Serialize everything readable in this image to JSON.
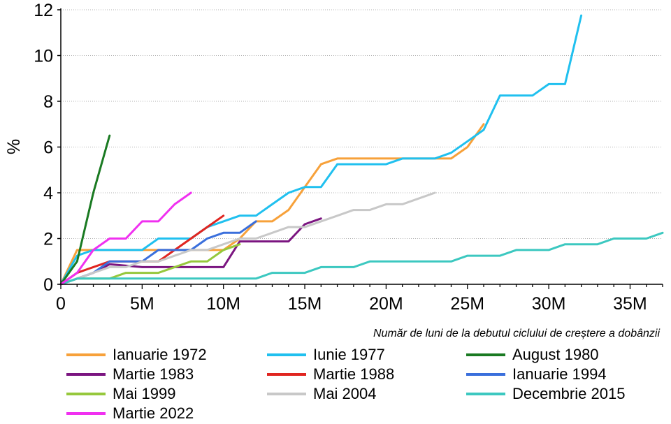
{
  "chart_data": {
    "type": "line",
    "title": "",
    "xlabel": "Număr de luni de la debutul ciclului de creștere a dobânzii",
    "ylabel": "%",
    "xlim": [
      0,
      37
    ],
    "ylim": [
      0,
      12
    ],
    "x_ticks": [
      {
        "value": 0,
        "label": "0"
      },
      {
        "value": 5,
        "label": "5M"
      },
      {
        "value": 10,
        "label": "10M"
      },
      {
        "value": 15,
        "label": "15M"
      },
      {
        "value": 20,
        "label": "20M"
      },
      {
        "value": 25,
        "label": "25M"
      },
      {
        "value": 30,
        "label": "30M"
      },
      {
        "value": 35,
        "label": "35M"
      }
    ],
    "y_ticks": [
      {
        "value": 0,
        "label": "0"
      },
      {
        "value": 2,
        "label": "2"
      },
      {
        "value": 4,
        "label": "4"
      },
      {
        "value": 6,
        "label": "6"
      },
      {
        "value": 8,
        "label": "8"
      },
      {
        "value": 10,
        "label": "10"
      },
      {
        "value": 12,
        "label": "12"
      }
    ],
    "grid": "horizontal-dotted",
    "legend_position": "bottom",
    "series": [
      {
        "name": "Ianuarie 1972",
        "color": "#f7a13a",
        "x": [
          0,
          1,
          5,
          9,
          10,
          11,
          12,
          13,
          14,
          15,
          16,
          17,
          18,
          19,
          20,
          21,
          22,
          23,
          24,
          25,
          26
        ],
        "y": [
          0,
          1.5,
          1.5,
          1.5,
          1.5,
          2,
          2.75,
          2.75,
          3.25,
          4.25,
          5.25,
          5.5,
          5.5,
          5.5,
          5.5,
          5.5,
          5.5,
          5.5,
          5.5,
          6,
          7
        ]
      },
      {
        "name": "Iunie 1977",
        "color": "#20c0ef",
        "x": [
          0,
          1,
          2,
          5,
          6,
          8,
          9,
          10,
          11,
          12,
          13,
          14,
          15,
          16,
          17,
          18,
          19,
          20,
          21,
          22,
          23,
          24,
          25,
          26,
          27,
          28,
          29,
          30,
          31,
          32
        ],
        "y": [
          0,
          1.25,
          1.5,
          1.5,
          2,
          2,
          2.5,
          2.75,
          3,
          3,
          3.5,
          4,
          4.25,
          4.25,
          5.25,
          5.25,
          5.25,
          5.25,
          5.5,
          5.5,
          5.5,
          5.75,
          6.25,
          6.75,
          8.25,
          8.25,
          8.25,
          8.75,
          8.75,
          11.75
        ]
      },
      {
        "name": "August 1980",
        "color": "#1a7a22",
        "x": [
          0,
          1,
          2,
          3
        ],
        "y": [
          0,
          1,
          4,
          6.5
        ]
      },
      {
        "name": "Martie 1983",
        "color": "#7b1580",
        "x": [
          0,
          1,
          2,
          3,
          5,
          9,
          10,
          11,
          14,
          15,
          16
        ],
        "y": [
          0,
          0.25,
          0.5,
          0.875,
          0.75,
          0.75,
          0.75,
          1.875,
          1.875,
          2.625,
          2.875
        ]
      },
      {
        "name": "Martie 1988",
        "color": "#e02520",
        "x": [
          0,
          1,
          2,
          3,
          5,
          6,
          7,
          8,
          9,
          10
        ],
        "y": [
          0,
          0.5,
          0.75,
          1,
          1,
          1,
          1.5,
          2,
          2.5,
          3
        ]
      },
      {
        "name": "Ianuarie 1994",
        "color": "#3a6fdc",
        "x": [
          0,
          1,
          2,
          3,
          5,
          6,
          8,
          9,
          10,
          11,
          12
        ],
        "y": [
          0,
          0.25,
          0.5,
          1,
          1,
          1.5,
          1.5,
          2,
          2.25,
          2.25,
          2.75
        ]
      },
      {
        "name": "Mai 1999",
        "color": "#96c83c",
        "x": [
          0,
          1,
          2,
          3,
          4,
          6,
          7,
          8,
          9,
          10,
          11
        ],
        "y": [
          0,
          0.25,
          0.25,
          0.25,
          0.5,
          0.5,
          0.75,
          1,
          1,
          1.5,
          1.75
        ]
      },
      {
        "name": "Mai 2004",
        "color": "#c8c8c8",
        "x": [
          0,
          1,
          2,
          3,
          4,
          5,
          6,
          7,
          8,
          9,
          10,
          11,
          12,
          13,
          14,
          15,
          16,
          17,
          18,
          19,
          20,
          21,
          22,
          23
        ],
        "y": [
          0,
          0.25,
          0.5,
          0.75,
          0.75,
          1,
          1,
          1.25,
          1.5,
          1.5,
          1.75,
          2,
          2,
          2.25,
          2.5,
          2.5,
          2.75,
          3,
          3.25,
          3.25,
          3.5,
          3.5,
          3.75,
          4
        ]
      },
      {
        "name": "Decembrie 2015",
        "color": "#3cc8c0",
        "x": [
          0,
          1,
          12,
          13,
          15,
          16,
          18,
          19,
          24,
          25,
          27,
          28,
          30,
          31,
          33,
          34,
          36,
          37
        ],
        "y": [
          0,
          0.25,
          0.25,
          0.5,
          0.5,
          0.75,
          0.75,
          1,
          1,
          1.25,
          1.25,
          1.5,
          1.5,
          1.75,
          1.75,
          2,
          2,
          2.25
        ]
      },
      {
        "name": "Martie 2022",
        "color": "#f030f0",
        "x": [
          0,
          1,
          2,
          3,
          4,
          5,
          6,
          7,
          8
        ],
        "y": [
          0,
          0.5,
          1.5,
          2,
          2,
          2.75,
          2.75,
          3.5,
          4
        ]
      }
    ]
  }
}
